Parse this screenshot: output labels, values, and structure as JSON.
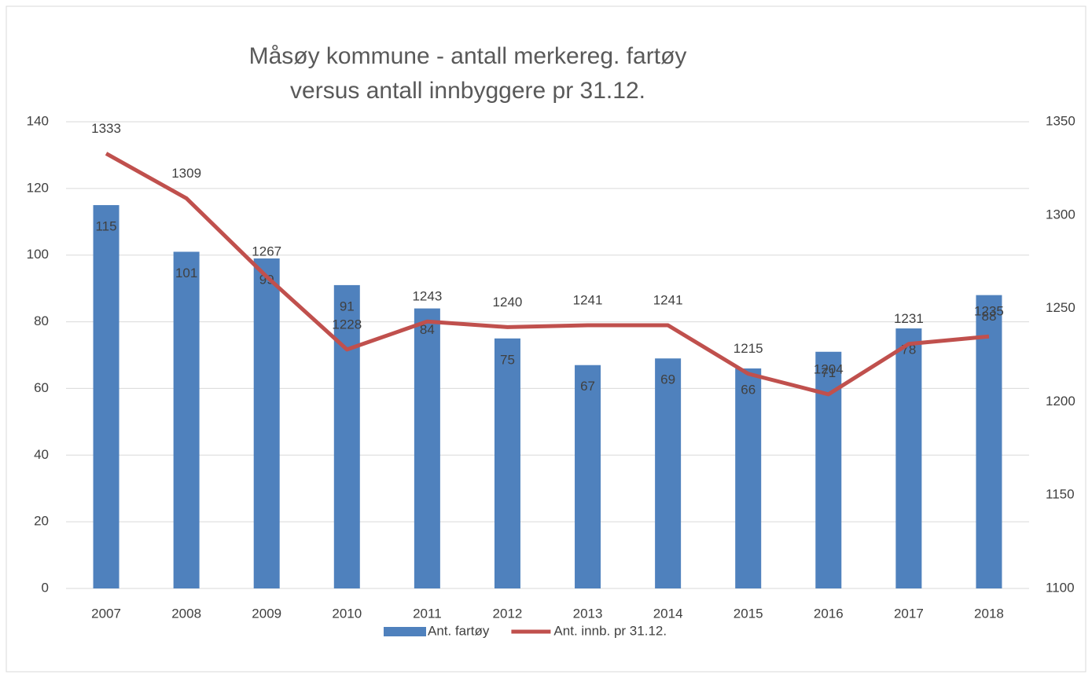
{
  "chart_data": {
    "type": "combo",
    "title": [
      "Måsøy kommune - antall merkereg. fartøy",
      "versus antall innbyggere pr 31.12."
    ],
    "categories": [
      "2007",
      "2008",
      "2009",
      "2010",
      "2011",
      "2012",
      "2013",
      "2014",
      "2015",
      "2016",
      "2017",
      "2018"
    ],
    "series": [
      {
        "name": "Ant. fartøy",
        "type": "bar",
        "color": "#4f81bd",
        "axis": "y",
        "values": [
          115,
          101,
          99,
          91,
          84,
          75,
          67,
          69,
          66,
          71,
          78,
          88
        ]
      },
      {
        "name": "Ant. innb. pr 31.12.",
        "type": "line",
        "color": "#c0504d",
        "axis": "y2",
        "values": [
          1333,
          1309,
          1267,
          1228,
          1243,
          1240,
          1241,
          1241,
          1215,
          1204,
          1231,
          1235
        ]
      }
    ],
    "ylim": [
      0,
      140
    ],
    "yticks": [
      0,
      20,
      40,
      60,
      80,
      100,
      120,
      140
    ],
    "y2lim": [
      1100,
      1350
    ],
    "y2ticks": [
      1100,
      1150,
      1200,
      1250,
      1300,
      1350
    ],
    "grid": true,
    "legend": "bottom"
  }
}
